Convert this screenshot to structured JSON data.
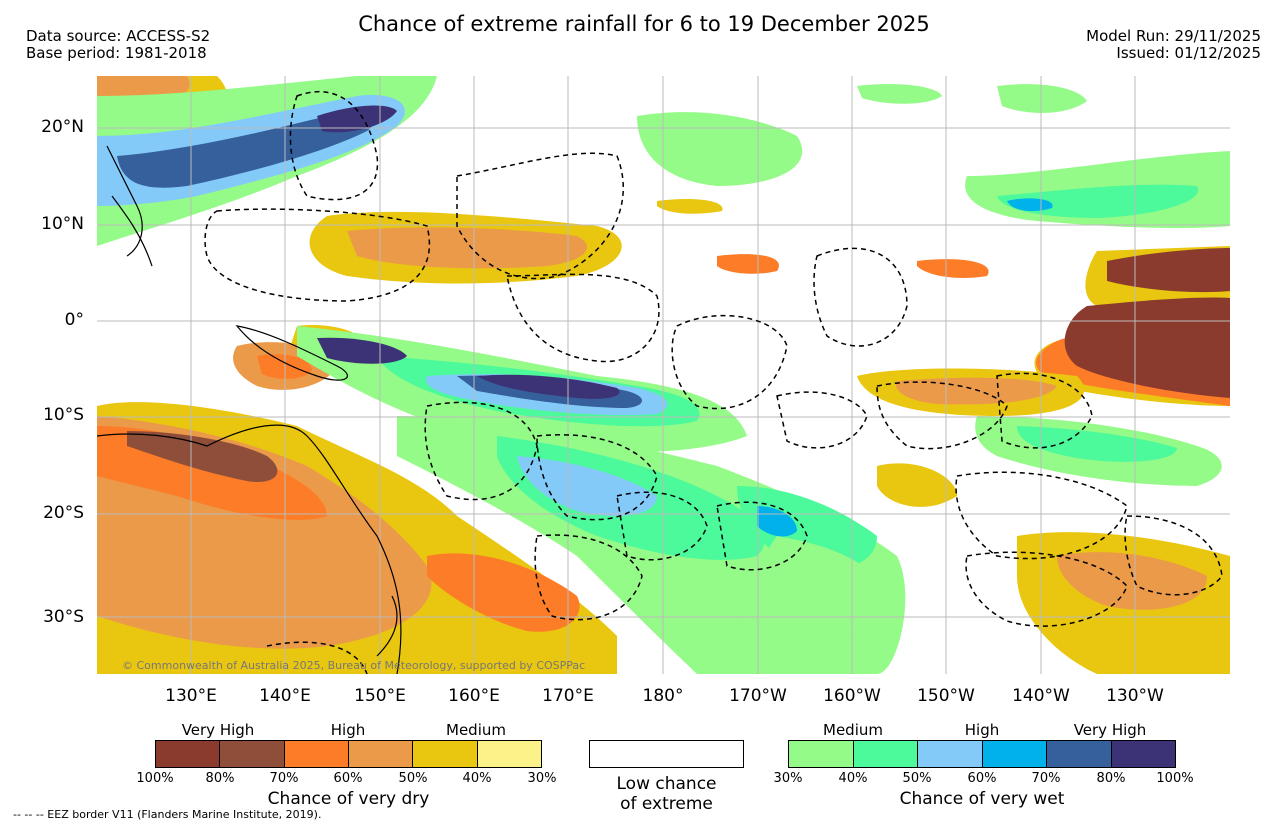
{
  "title": "Chance of extreme rainfall for 6 to 19 December 2025",
  "header": {
    "data_source": "Data source: ACCESS-S2",
    "base_period": "Base period: 1981-2018",
    "model_run": "Model Run: 29/11/2025",
    "issued": "Issued: 01/12/2025"
  },
  "axes": {
    "lat_labels": [
      "20°N",
      "10°N",
      "0°",
      "10°S",
      "20°S",
      "30°S"
    ],
    "lon_labels": [
      "130°E",
      "140°E",
      "150°E",
      "160°E",
      "170°E",
      "180°",
      "170°W",
      "160°W",
      "150°W",
      "140°W",
      "130°W"
    ]
  },
  "copyright": "© Commonwealth of Australia 2025, Bureau of Meteorology, supported by COSPPac",
  "legend": {
    "dry": {
      "headers": [
        "Very High",
        "High",
        "Medium"
      ],
      "colors": [
        "#8b3a2e",
        "#8e4e3a",
        "#fd7c27",
        "#eb9a4a",
        "#e9c60f",
        "#fbf28a"
      ],
      "ticks": [
        "100%",
        "80%",
        "70%",
        "60%",
        "50%",
        "40%",
        "30%"
      ],
      "title": "Chance of very dry"
    },
    "low": {
      "line1": "Low chance",
      "line2": "of extreme"
    },
    "wet": {
      "headers": [
        "Medium",
        "High",
        "Very High"
      ],
      "colors": [
        "#94fa88",
        "#4cf99b",
        "#84caf9",
        "#00b1ea",
        "#36609b",
        "#3c3377"
      ],
      "ticks": [
        "30%",
        "40%",
        "50%",
        "60%",
        "70%",
        "80%",
        "100%"
      ],
      "title": "Chance of very wet"
    }
  },
  "footnote": "--  --  -- EEZ border V11 (Flanders Marine Institute, 2019)."
}
